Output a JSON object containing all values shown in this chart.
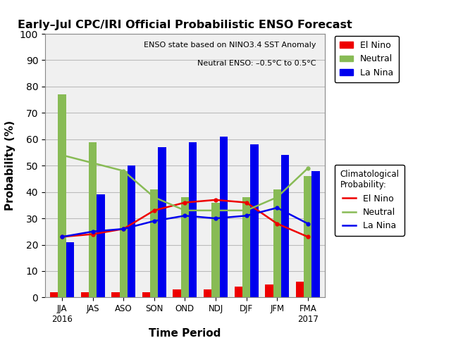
{
  "title": "Early–Jul CPC/IRI Official Probabilistic ENSO Forecast",
  "xlabel": "Time Period",
  "ylabel": "Probability (%)",
  "annotation_line1": "ENSO state based on NINO3.4 SST Anomaly",
  "annotation_line2": "Neutral ENSO: –0.5°C to 0.5°C",
  "categories": [
    "JJA\n2016",
    "JAS",
    "ASO",
    "SON",
    "OND",
    "NDJ",
    "DJF",
    "JFM",
    "FMA\n2017"
  ],
  "el_nino_bars": [
    2,
    2,
    2,
    2,
    3,
    3,
    4,
    5,
    6
  ],
  "neutral_bars": [
    77,
    59,
    48,
    41,
    38,
    36,
    38,
    41,
    46
  ],
  "la_nina_bars": [
    21,
    39,
    50,
    57,
    59,
    61,
    58,
    54,
    48
  ],
  "clim_el_nino": [
    23,
    24,
    26,
    33,
    36,
    37,
    36,
    28,
    23
  ],
  "clim_neutral": [
    54,
    51,
    48,
    38,
    33,
    33,
    33,
    38,
    49
  ],
  "clim_la_nina": [
    23,
    25,
    26,
    29,
    31,
    30,
    31,
    34,
    28
  ],
  "bar_color_el_nino": "#EE0000",
  "bar_color_neutral": "#88BB55",
  "bar_color_la_nina": "#0000EE",
  "line_color_el_nino": "#EE0000",
  "line_color_neutral": "#88BB55",
  "line_color_la_nina": "#0000EE",
  "ylim": [
    0,
    100
  ],
  "yticks": [
    0,
    10,
    20,
    30,
    40,
    50,
    60,
    70,
    80,
    90,
    100
  ],
  "bg_color": "#FFFFFF",
  "plot_bg": "#F0F0F0",
  "grid_color": "#BBBBBB",
  "figsize": [
    6.4,
    4.8
  ],
  "dpi": 100
}
